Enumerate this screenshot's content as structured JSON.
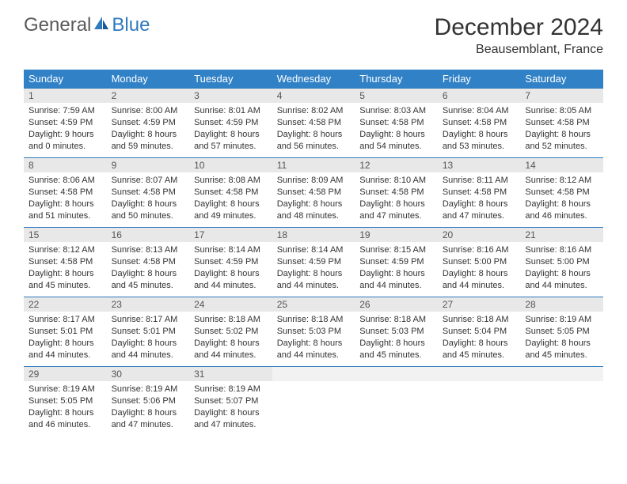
{
  "brand": {
    "part1": "General",
    "part2": "Blue"
  },
  "title": "December 2024",
  "location": "Beausemblant, France",
  "colors": {
    "header_bg": "#3081c6",
    "header_text": "#ffffff",
    "daynum_bg": "#e8e8e8",
    "row_border": "#2f79bd",
    "brand_gray": "#5a5a5a",
    "brand_blue": "#2f79bd",
    "body_text": "#333333"
  },
  "weekdays": [
    "Sunday",
    "Monday",
    "Tuesday",
    "Wednesday",
    "Thursday",
    "Friday",
    "Saturday"
  ],
  "weeks": [
    [
      {
        "num": "1",
        "sunrise": "Sunrise: 7:59 AM",
        "sunset": "Sunset: 4:59 PM",
        "daylight": "Daylight: 9 hours and 0 minutes."
      },
      {
        "num": "2",
        "sunrise": "Sunrise: 8:00 AM",
        "sunset": "Sunset: 4:59 PM",
        "daylight": "Daylight: 8 hours and 59 minutes."
      },
      {
        "num": "3",
        "sunrise": "Sunrise: 8:01 AM",
        "sunset": "Sunset: 4:59 PM",
        "daylight": "Daylight: 8 hours and 57 minutes."
      },
      {
        "num": "4",
        "sunrise": "Sunrise: 8:02 AM",
        "sunset": "Sunset: 4:58 PM",
        "daylight": "Daylight: 8 hours and 56 minutes."
      },
      {
        "num": "5",
        "sunrise": "Sunrise: 8:03 AM",
        "sunset": "Sunset: 4:58 PM",
        "daylight": "Daylight: 8 hours and 54 minutes."
      },
      {
        "num": "6",
        "sunrise": "Sunrise: 8:04 AM",
        "sunset": "Sunset: 4:58 PM",
        "daylight": "Daylight: 8 hours and 53 minutes."
      },
      {
        "num": "7",
        "sunrise": "Sunrise: 8:05 AM",
        "sunset": "Sunset: 4:58 PM",
        "daylight": "Daylight: 8 hours and 52 minutes."
      }
    ],
    [
      {
        "num": "8",
        "sunrise": "Sunrise: 8:06 AM",
        "sunset": "Sunset: 4:58 PM",
        "daylight": "Daylight: 8 hours and 51 minutes."
      },
      {
        "num": "9",
        "sunrise": "Sunrise: 8:07 AM",
        "sunset": "Sunset: 4:58 PM",
        "daylight": "Daylight: 8 hours and 50 minutes."
      },
      {
        "num": "10",
        "sunrise": "Sunrise: 8:08 AM",
        "sunset": "Sunset: 4:58 PM",
        "daylight": "Daylight: 8 hours and 49 minutes."
      },
      {
        "num": "11",
        "sunrise": "Sunrise: 8:09 AM",
        "sunset": "Sunset: 4:58 PM",
        "daylight": "Daylight: 8 hours and 48 minutes."
      },
      {
        "num": "12",
        "sunrise": "Sunrise: 8:10 AM",
        "sunset": "Sunset: 4:58 PM",
        "daylight": "Daylight: 8 hours and 47 minutes."
      },
      {
        "num": "13",
        "sunrise": "Sunrise: 8:11 AM",
        "sunset": "Sunset: 4:58 PM",
        "daylight": "Daylight: 8 hours and 47 minutes."
      },
      {
        "num": "14",
        "sunrise": "Sunrise: 8:12 AM",
        "sunset": "Sunset: 4:58 PM",
        "daylight": "Daylight: 8 hours and 46 minutes."
      }
    ],
    [
      {
        "num": "15",
        "sunrise": "Sunrise: 8:12 AM",
        "sunset": "Sunset: 4:58 PM",
        "daylight": "Daylight: 8 hours and 45 minutes."
      },
      {
        "num": "16",
        "sunrise": "Sunrise: 8:13 AM",
        "sunset": "Sunset: 4:58 PM",
        "daylight": "Daylight: 8 hours and 45 minutes."
      },
      {
        "num": "17",
        "sunrise": "Sunrise: 8:14 AM",
        "sunset": "Sunset: 4:59 PM",
        "daylight": "Daylight: 8 hours and 44 minutes."
      },
      {
        "num": "18",
        "sunrise": "Sunrise: 8:14 AM",
        "sunset": "Sunset: 4:59 PM",
        "daylight": "Daylight: 8 hours and 44 minutes."
      },
      {
        "num": "19",
        "sunrise": "Sunrise: 8:15 AM",
        "sunset": "Sunset: 4:59 PM",
        "daylight": "Daylight: 8 hours and 44 minutes."
      },
      {
        "num": "20",
        "sunrise": "Sunrise: 8:16 AM",
        "sunset": "Sunset: 5:00 PM",
        "daylight": "Daylight: 8 hours and 44 minutes."
      },
      {
        "num": "21",
        "sunrise": "Sunrise: 8:16 AM",
        "sunset": "Sunset: 5:00 PM",
        "daylight": "Daylight: 8 hours and 44 minutes."
      }
    ],
    [
      {
        "num": "22",
        "sunrise": "Sunrise: 8:17 AM",
        "sunset": "Sunset: 5:01 PM",
        "daylight": "Daylight: 8 hours and 44 minutes."
      },
      {
        "num": "23",
        "sunrise": "Sunrise: 8:17 AM",
        "sunset": "Sunset: 5:01 PM",
        "daylight": "Daylight: 8 hours and 44 minutes."
      },
      {
        "num": "24",
        "sunrise": "Sunrise: 8:18 AM",
        "sunset": "Sunset: 5:02 PM",
        "daylight": "Daylight: 8 hours and 44 minutes."
      },
      {
        "num": "25",
        "sunrise": "Sunrise: 8:18 AM",
        "sunset": "Sunset: 5:03 PM",
        "daylight": "Daylight: 8 hours and 44 minutes."
      },
      {
        "num": "26",
        "sunrise": "Sunrise: 8:18 AM",
        "sunset": "Sunset: 5:03 PM",
        "daylight": "Daylight: 8 hours and 45 minutes."
      },
      {
        "num": "27",
        "sunrise": "Sunrise: 8:18 AM",
        "sunset": "Sunset: 5:04 PM",
        "daylight": "Daylight: 8 hours and 45 minutes."
      },
      {
        "num": "28",
        "sunrise": "Sunrise: 8:19 AM",
        "sunset": "Sunset: 5:05 PM",
        "daylight": "Daylight: 8 hours and 45 minutes."
      }
    ],
    [
      {
        "num": "29",
        "sunrise": "Sunrise: 8:19 AM",
        "sunset": "Sunset: 5:05 PM",
        "daylight": "Daylight: 8 hours and 46 minutes."
      },
      {
        "num": "30",
        "sunrise": "Sunrise: 8:19 AM",
        "sunset": "Sunset: 5:06 PM",
        "daylight": "Daylight: 8 hours and 47 minutes."
      },
      {
        "num": "31",
        "sunrise": "Sunrise: 8:19 AM",
        "sunset": "Sunset: 5:07 PM",
        "daylight": "Daylight: 8 hours and 47 minutes."
      },
      {
        "empty": true
      },
      {
        "empty": true
      },
      {
        "empty": true
      },
      {
        "empty": true
      }
    ]
  ]
}
